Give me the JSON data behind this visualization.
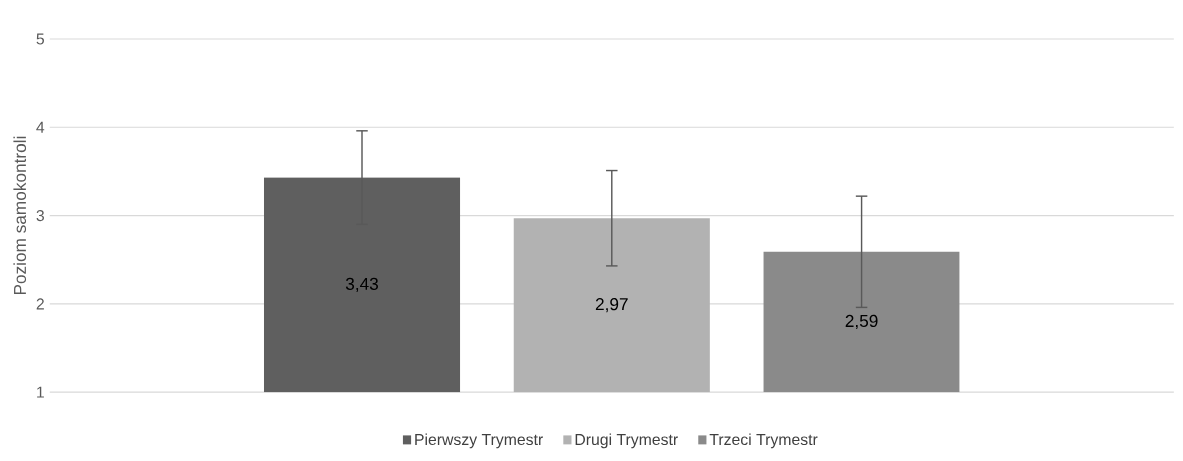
{
  "chart_data": {
    "type": "bar",
    "ylabel": "Poziom samokontroli",
    "categories": [
      null
    ],
    "series": [
      {
        "name": "Pierwszy Trymestr",
        "color": "#5f5f5f",
        "values": [
          3.43
        ],
        "errors": [
          0.53
        ],
        "value_labels": [
          "3,43"
        ]
      },
      {
        "name": "Drugi Trymestr",
        "color": "#b2b2b2",
        "values": [
          2.97
        ],
        "errors": [
          0.54
        ],
        "value_labels": [
          "2,97"
        ]
      },
      {
        "name": "Trzeci Trymestr",
        "color": "#8a8a8a",
        "values": [
          2.59
        ],
        "errors": [
          0.63
        ],
        "value_labels": [
          "2,59"
        ]
      }
    ],
    "ylim": [
      1,
      5
    ],
    "yticks": [
      1,
      2,
      3,
      4,
      5
    ],
    "grid": "y",
    "legend": "bottom"
  }
}
